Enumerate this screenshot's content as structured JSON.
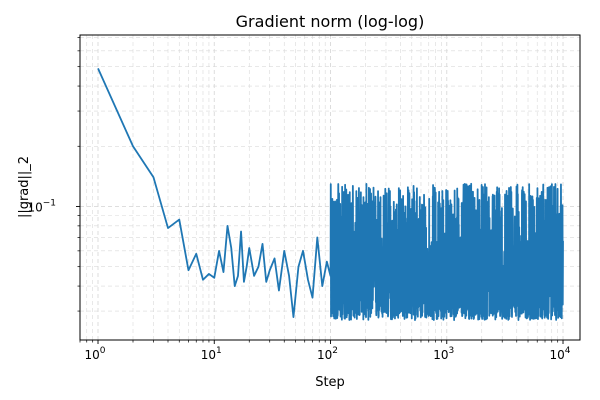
{
  "chart_data": {
    "type": "line",
    "title": "Gradient norm (log-log)",
    "xlabel": "Step",
    "ylabel": "||grad||_2",
    "xscale": "log",
    "yscale": "log",
    "xlim": [
      0.7,
      14000
    ],
    "ylim": [
      0.0215,
      0.72
    ],
    "grid": "on (major and minor, dashed)",
    "legend": "none",
    "colors": {
      "series": "#1f77b4",
      "grid": "#d9d9d9",
      "axes": "#000000"
    },
    "x_ticks": [
      {
        "value": 1,
        "base": "10",
        "exp": "0"
      },
      {
        "value": 10,
        "base": "10",
        "exp": "1"
      },
      {
        "value": 100,
        "base": "10",
        "exp": "2"
      },
      {
        "value": 1000,
        "base": "10",
        "exp": "3"
      },
      {
        "value": 10000,
        "base": "10",
        "exp": "4"
      }
    ],
    "y_ticks": [
      {
        "value": 0.1,
        "base": "10",
        "exp": "−1"
      }
    ],
    "series": [
      {
        "x": [
          1,
          2,
          3,
          4,
          5,
          6,
          7,
          8,
          9,
          10,
          11,
          12,
          13,
          14,
          15,
          16,
          17,
          18,
          19,
          20,
          22,
          24,
          26,
          28,
          30,
          33,
          36,
          40,
          44,
          48,
          53,
          58,
          64,
          70,
          77,
          85,
          93,
          100
        ],
        "y": [
          0.49,
          0.2,
          0.14,
          0.078,
          0.086,
          0.048,
          0.058,
          0.043,
          0.046,
          0.044,
          0.06,
          0.047,
          0.08,
          0.062,
          0.04,
          0.045,
          0.075,
          0.042,
          0.05,
          0.062,
          0.045,
          0.05,
          0.065,
          0.042,
          0.048,
          0.055,
          0.038,
          0.06,
          0.045,
          0.028,
          0.05,
          0.06,
          0.043,
          0.035,
          0.07,
          0.04,
          0.053,
          0.045
        ],
        "noise_band": {
          "x_start": 100,
          "x_end": 10000,
          "y_low": 0.027,
          "y_high": 0.13,
          "center": 0.045
        }
      }
    ]
  }
}
